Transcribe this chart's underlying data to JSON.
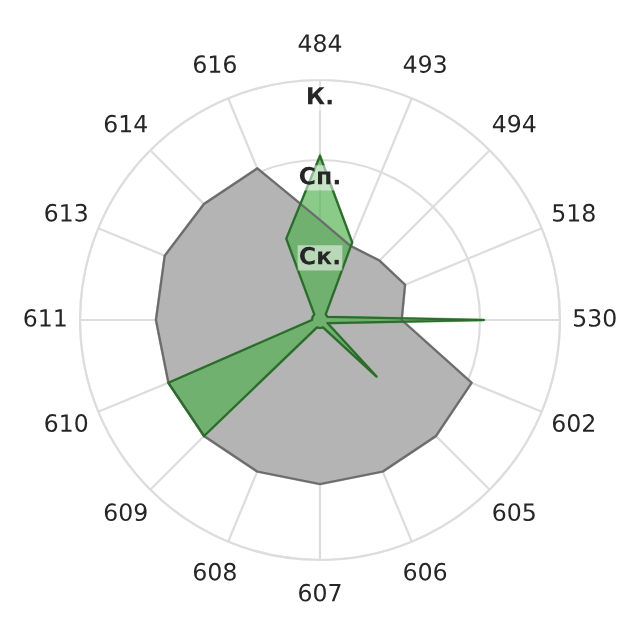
{
  "chart_data": {
    "type": "radar",
    "categories": [
      "484",
      "493",
      "494",
      "518",
      "530",
      "602",
      "605",
      "606",
      "607",
      "608",
      "609",
      "610",
      "611",
      "613",
      "614",
      "616"
    ],
    "series": [
      {
        "color": "#b4b4b4",
        "values": [
          1.25,
          1.0,
          1.05,
          1.15,
          1.02,
          2.05,
          2.05,
          2.05,
          2.05,
          2.05,
          2.05,
          2.05,
          2.05,
          2.1,
          2.05,
          2.05
        ]
      },
      {
        "color": "#4cb04c",
        "values": [
          2.05,
          1.05,
          0.1,
          0.1,
          2.05,
          0.1,
          1.0,
          0.1,
          0.1,
          0.1,
          2.05,
          2.05,
          0.1,
          0.1,
          0.1,
          1.1
        ]
      }
    ],
    "ylim": [
      0,
      3
    ],
    "yticks": [
      {
        "value": 1,
        "label": "Ск."
      },
      {
        "value": 2,
        "label": "Сп."
      },
      {
        "value": 3,
        "label": "К."
      }
    ],
    "grid": true
  }
}
